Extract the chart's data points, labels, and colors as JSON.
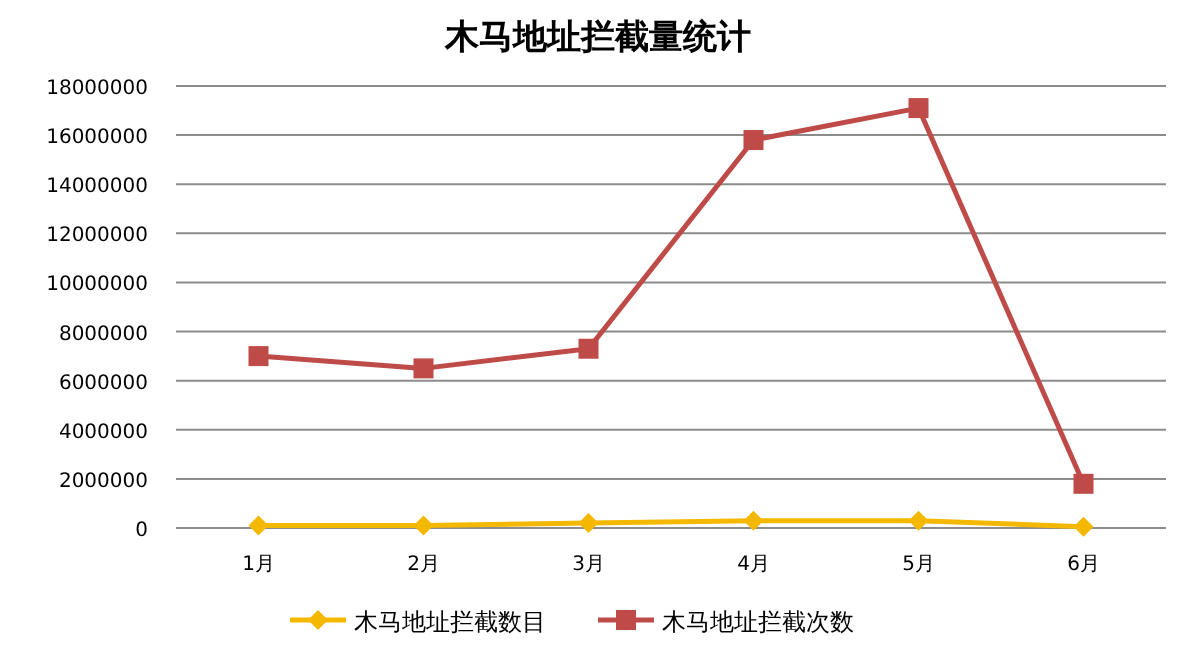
{
  "chart_data": {
    "type": "line",
    "title": "木马地址拦截量统计",
    "categories": [
      "1月",
      "2月",
      "3月",
      "4月",
      "5月",
      "6月"
    ],
    "series": [
      {
        "name": "木马地址拦截数目",
        "color": "#f5b800",
        "marker": "diamond",
        "values": [
          100000,
          100000,
          200000,
          300000,
          300000,
          50000
        ]
      },
      {
        "name": "木马地址拦截次数",
        "color": "#be4b48",
        "marker": "square",
        "values": [
          7000000,
          6500000,
          7300000,
          15800000,
          17100000,
          1800000
        ]
      }
    ],
    "ylim": [
      0,
      18000000
    ],
    "yticks": [
      0,
      2000000,
      4000000,
      6000000,
      8000000,
      10000000,
      12000000,
      14000000,
      16000000,
      18000000
    ],
    "grid": "y",
    "legend": "bottom"
  }
}
